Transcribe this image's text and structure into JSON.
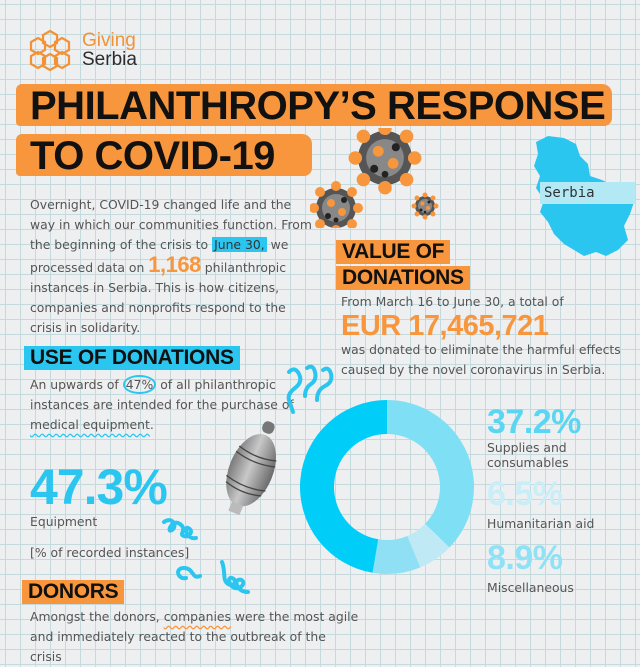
{
  "logo": {
    "line1": "Giving",
    "line2": "Serbia",
    "icon": "hexagon-flower-logo-icon"
  },
  "title": {
    "line1": "PHILANTHROPY’S RESPONSE",
    "line2": "TO COVID-19"
  },
  "intro": {
    "part1": "Overnight, COVID-19 changed life and the way in which our communities function. From the beginning of the crisis to ",
    "highlight_date": "June 30,",
    "part2": " we processed data on ",
    "count": "1,168",
    "part3": " philanthropic instances in Serbia. This is how citizens, companies and nonprofits respond to the crisis in solidarity."
  },
  "map": {
    "label": "Serbia",
    "color": "#2bc6f0"
  },
  "value_of_donations": {
    "heading_line1": "VALUE OF",
    "heading_line2": "DONATIONS",
    "lead": "From March 16 to June 30, a total of",
    "amount": "EUR 17,465,721",
    "tail": "was donated to eliminate the harmful effects caused by the novel coronavirus in Serbia."
  },
  "use_of_donations": {
    "heading": "USE OF DONATIONS",
    "text_part1": "An upwards of ",
    "circled_value": "47%",
    "text_part2": " of all philanthropic instances are intended for the purchase of ",
    "underlined": "medical equipment",
    "text_part3": "."
  },
  "equipment": {
    "percent": "47.3%",
    "label": "Equipment",
    "note": "[% of recorded instances]"
  },
  "legend": [
    {
      "percent": "37.2%",
      "label": "Supplies and consumables",
      "color": "#5ad6f2"
    },
    {
      "percent": "6.5%",
      "label": "Humanitarian aid",
      "color": "#c9eef8"
    },
    {
      "percent": "8.9%",
      "label": "Miscellaneous",
      "color": "#8fe2f5"
    }
  ],
  "donors": {
    "heading": "DONORS",
    "text_part1": "Amongst the donors, ",
    "underlined": "companies",
    "text_part2": " were the most agile and immediately reacted to the outbreak of the crisis"
  },
  "colors": {
    "orange": "#f7963d",
    "cyan": "#2bc6f0",
    "background": "#eeeff1",
    "grid": "#c5dadd"
  },
  "chart_data": {
    "type": "pie",
    "subtype": "donut",
    "title": "Use of donations",
    "note": "[% of recorded instances]",
    "categories": [
      "Supplies and consumables",
      "Humanitarian aid",
      "Miscellaneous",
      "Equipment"
    ],
    "values": [
      37.2,
      6.5,
      8.9,
      47.3
    ],
    "colors": [
      "#7fdff5",
      "#bfeaf5",
      "#8fe0f4",
      "#00cdf8"
    ],
    "start_angle": "top (12 o'clock), clockwise",
    "legend_position": "right"
  }
}
